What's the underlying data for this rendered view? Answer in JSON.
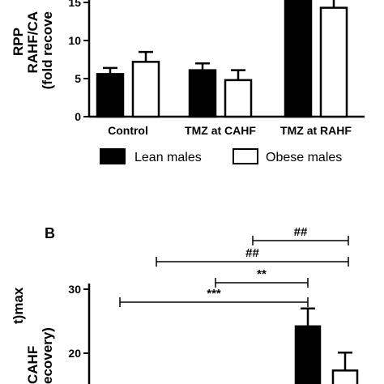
{
  "chart_data": [
    {
      "type": "bar",
      "ylabel_lines": [
        "RPP",
        "RAHF/CA",
        "(fold recove"
      ],
      "yticks": [
        0,
        5,
        10,
        15
      ],
      "ylim": [
        0,
        17
      ],
      "categories": [
        "Control",
        "TMZ at CAHF",
        "TMZ at RAHF"
      ],
      "series": [
        {
          "name": "Lean males",
          "color": "#000000",
          "values": [
            5.6,
            6.1,
            17
          ],
          "errors": [
            0.8,
            0.9,
            0
          ]
        },
        {
          "name": "Obese males",
          "color": "#ffffff",
          "values": [
            7.2,
            4.8,
            14.3
          ],
          "errors": [
            1.3,
            1.3,
            2.0
          ]
        }
      ],
      "legend": "below"
    },
    {
      "type": "bar",
      "panel_label": "B",
      "ylabel_lines": [
        "t)max",
        "CAHF",
        "ecovery)"
      ],
      "yticks": [
        20,
        30
      ],
      "series": [
        {
          "name": "Lean males",
          "color": "#000000",
          "values": [
            24.2
          ],
          "errors": [
            2.8
          ]
        },
        {
          "name": "Obese males",
          "color": "#ffffff",
          "values": [
            17.3
          ],
          "errors": [
            2.8
          ]
        }
      ],
      "annotations": [
        "##",
        "##",
        "**",
        "***"
      ]
    }
  ]
}
